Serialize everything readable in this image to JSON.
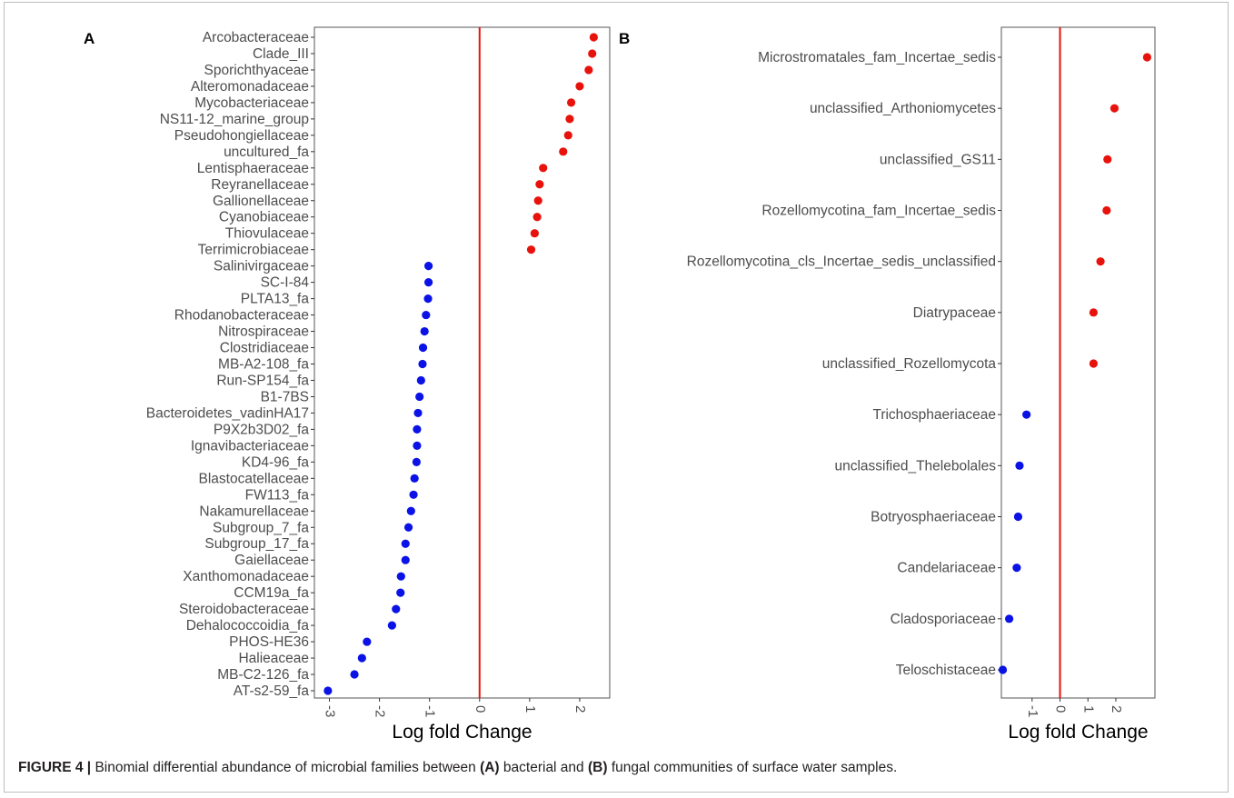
{
  "caption": {
    "figure_label": "FIGURE 4 |",
    "text1": " Binomial differential abundance of microbial families between ",
    "a_ref": "(A)",
    "text2": " bacterial and ",
    "b_ref": "(B)",
    "text3": " fungal communities of surface water samples."
  },
  "colors": {
    "positive": "#e8120c",
    "negative": "#0a12e6",
    "zero_line": "#e8120c",
    "axis": "#333333"
  },
  "chart_data": [
    {
      "type": "scatter",
      "panel_label": "A",
      "xlabel": "Log fold Change",
      "ylabel": "",
      "xlim": [
        -3.3,
        2.6
      ],
      "xticks": [
        -3,
        -2,
        -1,
        0,
        1,
        2
      ],
      "xtick_labels": [
        "-3",
        "-2",
        "-1",
        "0",
        "1",
        "2"
      ],
      "grid": false,
      "categories": [
        "Arcobacteraceae",
        "Clade_III",
        "Sporichthyaceae",
        "Alteromonadaceae",
        "Mycobacteriaceae",
        "NS11-12_marine_group",
        "Pseudohongiellaceae",
        "uncultured_fa",
        "Lentisphaeraceae",
        "Reyranellaceae",
        "Gallionellaceae",
        "Cyanobiaceae",
        "Thiovulaceae",
        "Terrimicrobiaceae",
        "Salinivirgaceae",
        "SC-I-84",
        "PLTA13_fa",
        "Rhodanobacteraceae",
        "Nitrospiraceae",
        "Clostridiaceae",
        "MB-A2-108_fa",
        "Run-SP154_fa",
        "B1-7BS",
        "Bacteroidetes_vadinHA17",
        "P9X2b3D02_fa",
        "Ignavibacteriaceae",
        "KD4-96_fa",
        "Blastocatellaceae",
        "FW113_fa",
        "Nakamurellaceae",
        "Subgroup_7_fa",
        "Subgroup_17_fa",
        "Gaiellaceae",
        "Xanthomonadaceae",
        "CCM19a_fa",
        "Steroidobacteraceae",
        "Dehalococcoidia_fa",
        "PHOS-HE36",
        "Halieaceae",
        "MB-C2-126_fa",
        "AT-s2-59_fa"
      ],
      "values": [
        2.28,
        2.25,
        2.18,
        2.0,
        1.83,
        1.8,
        1.77,
        1.67,
        1.27,
        1.2,
        1.17,
        1.15,
        1.1,
        1.03,
        -1.02,
        -1.02,
        -1.03,
        -1.07,
        -1.1,
        -1.13,
        -1.14,
        -1.17,
        -1.2,
        -1.23,
        -1.25,
        -1.25,
        -1.26,
        -1.3,
        -1.32,
        -1.37,
        -1.42,
        -1.48,
        -1.48,
        -1.57,
        -1.58,
        -1.67,
        -1.75,
        -2.25,
        -2.35,
        -2.5,
        -3.03
      ]
    },
    {
      "type": "scatter",
      "panel_label": "B",
      "xlabel": "Log fold Change",
      "ylabel": "",
      "xlim": [
        -2.1,
        3.4
      ],
      "xticks": [
        -1,
        0,
        1,
        2
      ],
      "xtick_labels": [
        "-1",
        "0",
        "1",
        "2"
      ],
      "grid": false,
      "categories": [
        "Microstromatales_fam_Incertae_sedis",
        "unclassified_Arthoniomycetes",
        "unclassified_GS11",
        "Rozellomycotina_fam_Incertae_sedis",
        "Rozellomycotina_cls_Incertae_sedis_unclassified",
        "Diatrypaceae",
        "unclassified_Rozellomycota",
        "Trichosphaeriaceae",
        "unclassified_Thelebolales",
        "Botryosphaeriaceae",
        "Candelariaceae",
        "Cladosporiaceae",
        "Teloschistaceae"
      ],
      "values": [
        3.12,
        1.95,
        1.7,
        1.67,
        1.45,
        1.2,
        1.2,
        -1.2,
        -1.45,
        -1.5,
        -1.55,
        -1.82,
        -2.05
      ]
    }
  ]
}
